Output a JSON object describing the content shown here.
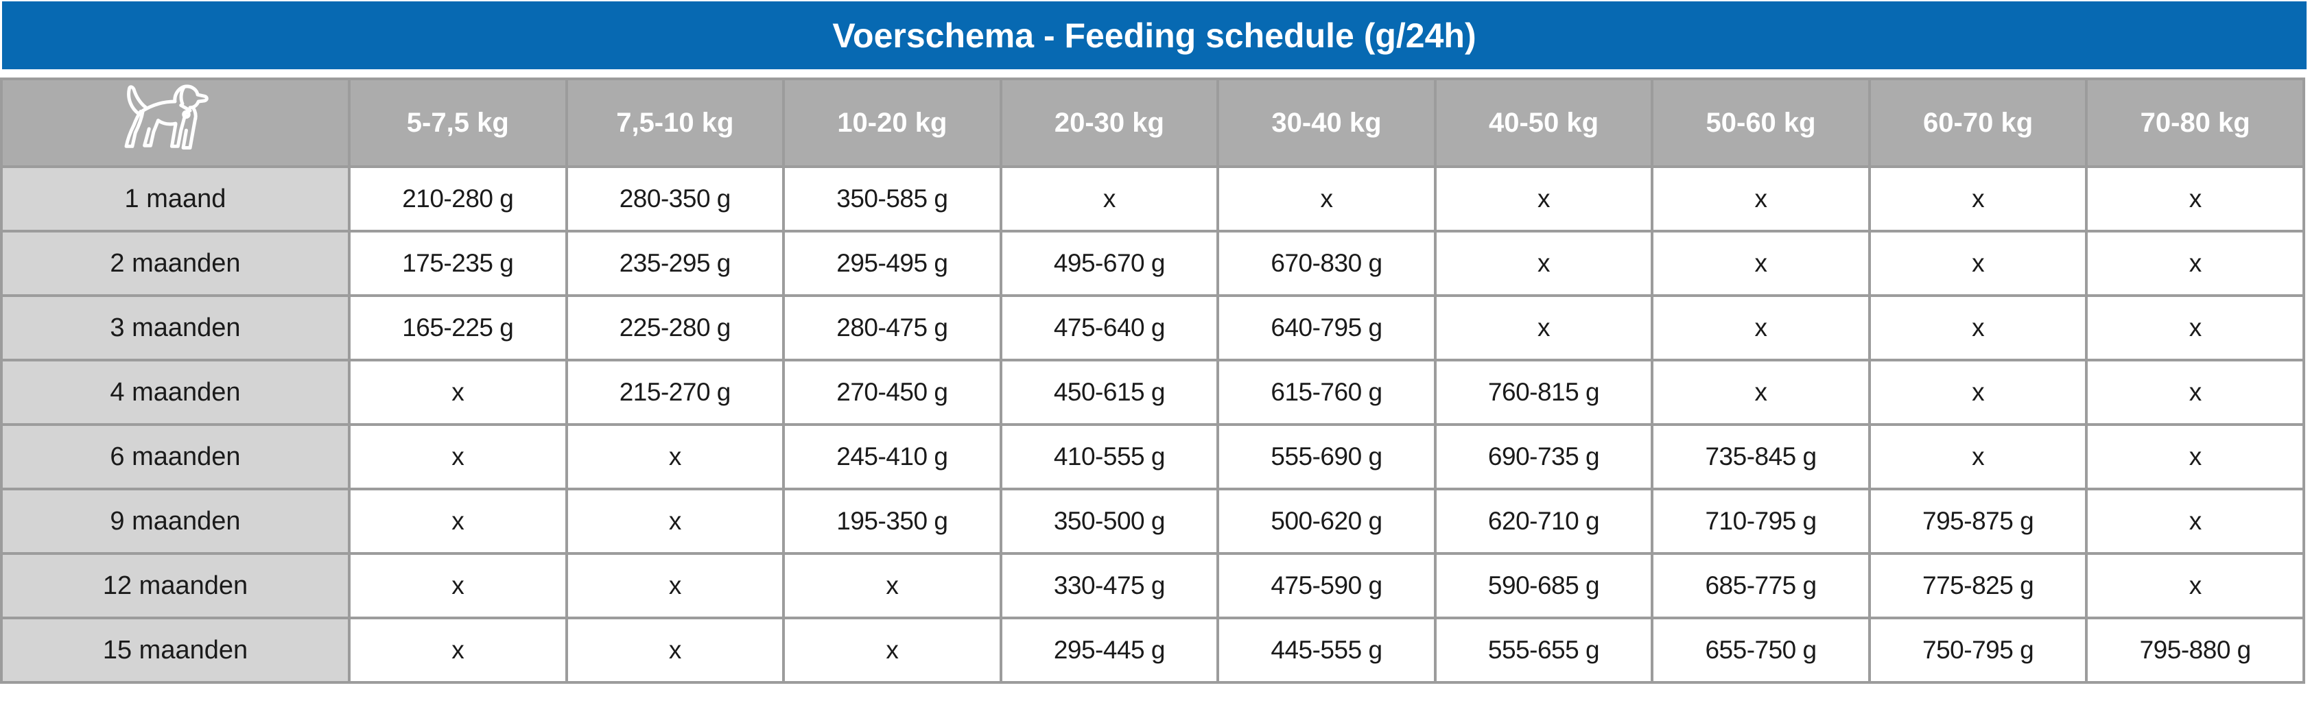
{
  "title": "Voerschema - Feeding schedule (g/24h)",
  "empty_marker": "x",
  "header_icon": "dog-icon",
  "colors": {
    "banner_blue": "#0769B2",
    "header_gray": "#ACACAC",
    "label_gray": "#D4D4D4",
    "border_gray": "#9C9C9C",
    "text_black": "#1A1A1A",
    "white": "#FFFFFF"
  },
  "chart_data": {
    "type": "table",
    "title": "Voerschema - Feeding schedule (g/24h)",
    "unit": "g/24h",
    "columns": [
      "5-7,5 kg",
      "7,5-10 kg",
      "10-20 kg",
      "20-30 kg",
      "30-40 kg",
      "40-50 kg",
      "50-60 kg",
      "60-70 kg",
      "70-80 kg"
    ],
    "row_header": "age",
    "rows": [
      {
        "age": "1 maand",
        "values": [
          "210-280 g",
          "280-350 g",
          "350-585 g",
          "x",
          "x",
          "x",
          "x",
          "x",
          "x"
        ]
      },
      {
        "age": "2 maanden",
        "values": [
          "175-235 g",
          "235-295 g",
          "295-495 g",
          "495-670 g",
          "670-830 g",
          "x",
          "x",
          "x",
          "x"
        ]
      },
      {
        "age": "3 maanden",
        "values": [
          "165-225 g",
          "225-280 g",
          "280-475 g",
          "475-640 g",
          "640-795 g",
          "x",
          "x",
          "x",
          "x"
        ]
      },
      {
        "age": "4 maanden",
        "values": [
          "x",
          "215-270 g",
          "270-450 g",
          "450-615 g",
          "615-760 g",
          "760-815 g",
          "x",
          "x",
          "x"
        ]
      },
      {
        "age": "6 maanden",
        "values": [
          "x",
          "x",
          "245-410 g",
          "410-555 g",
          "555-690 g",
          "690-735 g",
          "735-845 g",
          "x",
          "x"
        ]
      },
      {
        "age": "9 maanden",
        "values": [
          "x",
          "x",
          "195-350 g",
          "350-500 g",
          "500-620 g",
          "620-710 g",
          "710-795 g",
          "795-875 g",
          "x"
        ]
      },
      {
        "age": "12 maanden",
        "values": [
          "x",
          "x",
          "x",
          "330-475 g",
          "475-590 g",
          "590-685 g",
          "685-775 g",
          "775-825 g",
          "x"
        ]
      },
      {
        "age": "15 maanden",
        "values": [
          "x",
          "x",
          "x",
          "295-445 g",
          "445-555 g",
          "555-655 g",
          "655-750 g",
          "750-795 g",
          "795-880 g"
        ]
      }
    ]
  }
}
